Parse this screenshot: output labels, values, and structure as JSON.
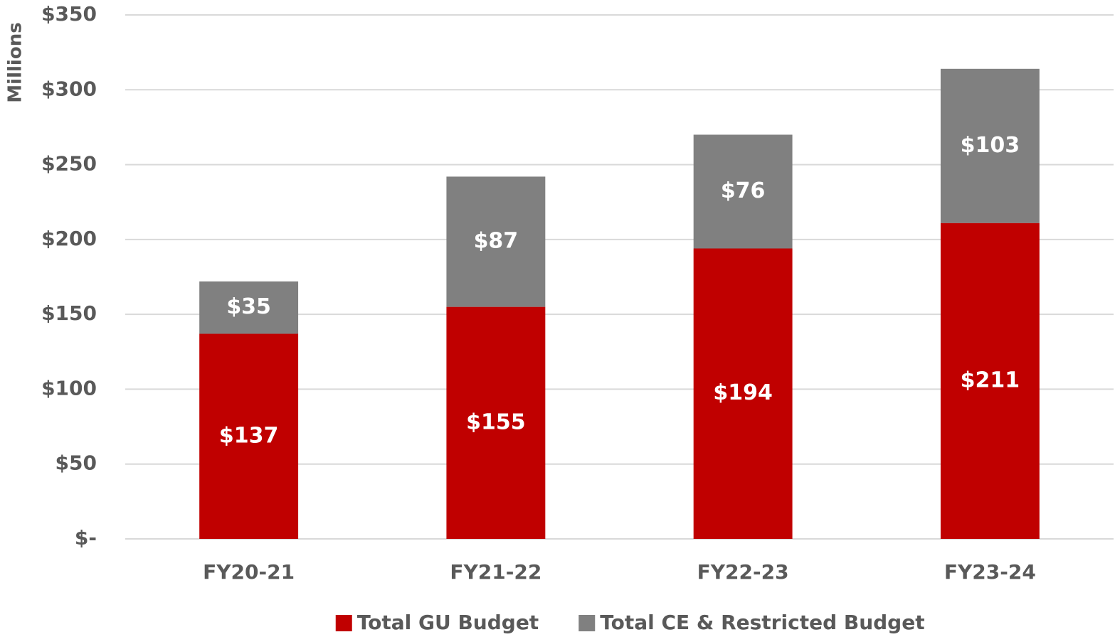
{
  "chart_data": {
    "type": "stacked_bar",
    "y_axis_label": "Millions",
    "categories": [
      "FY20-21",
      "FY21-22",
      "FY22-23",
      "FY23-24"
    ],
    "series": [
      {
        "name": "Total GU Budget",
        "color": "#c00000",
        "values": [
          137,
          155,
          194,
          211
        ],
        "value_labels": [
          "$137",
          "$155",
          "$194",
          "$211"
        ]
      },
      {
        "name": "Total CE & Restricted Budget",
        "color": "#808080",
        "values": [
          35,
          87,
          76,
          103
        ],
        "value_labels": [
          "$35",
          "$87",
          "$76",
          "$103"
        ]
      }
    ],
    "ylim": [
      0,
      350
    ],
    "yticks": [
      {
        "value": 0,
        "label": "$-"
      },
      {
        "value": 50,
        "label": "$50"
      },
      {
        "value": 100,
        "label": "$100"
      },
      {
        "value": 150,
        "label": "$150"
      },
      {
        "value": 200,
        "label": "$200"
      },
      {
        "value": 250,
        "label": "$250"
      },
      {
        "value": 300,
        "label": "$300"
      },
      {
        "value": 350,
        "label": "$350"
      }
    ],
    "grid": true,
    "legend": "bottom"
  }
}
